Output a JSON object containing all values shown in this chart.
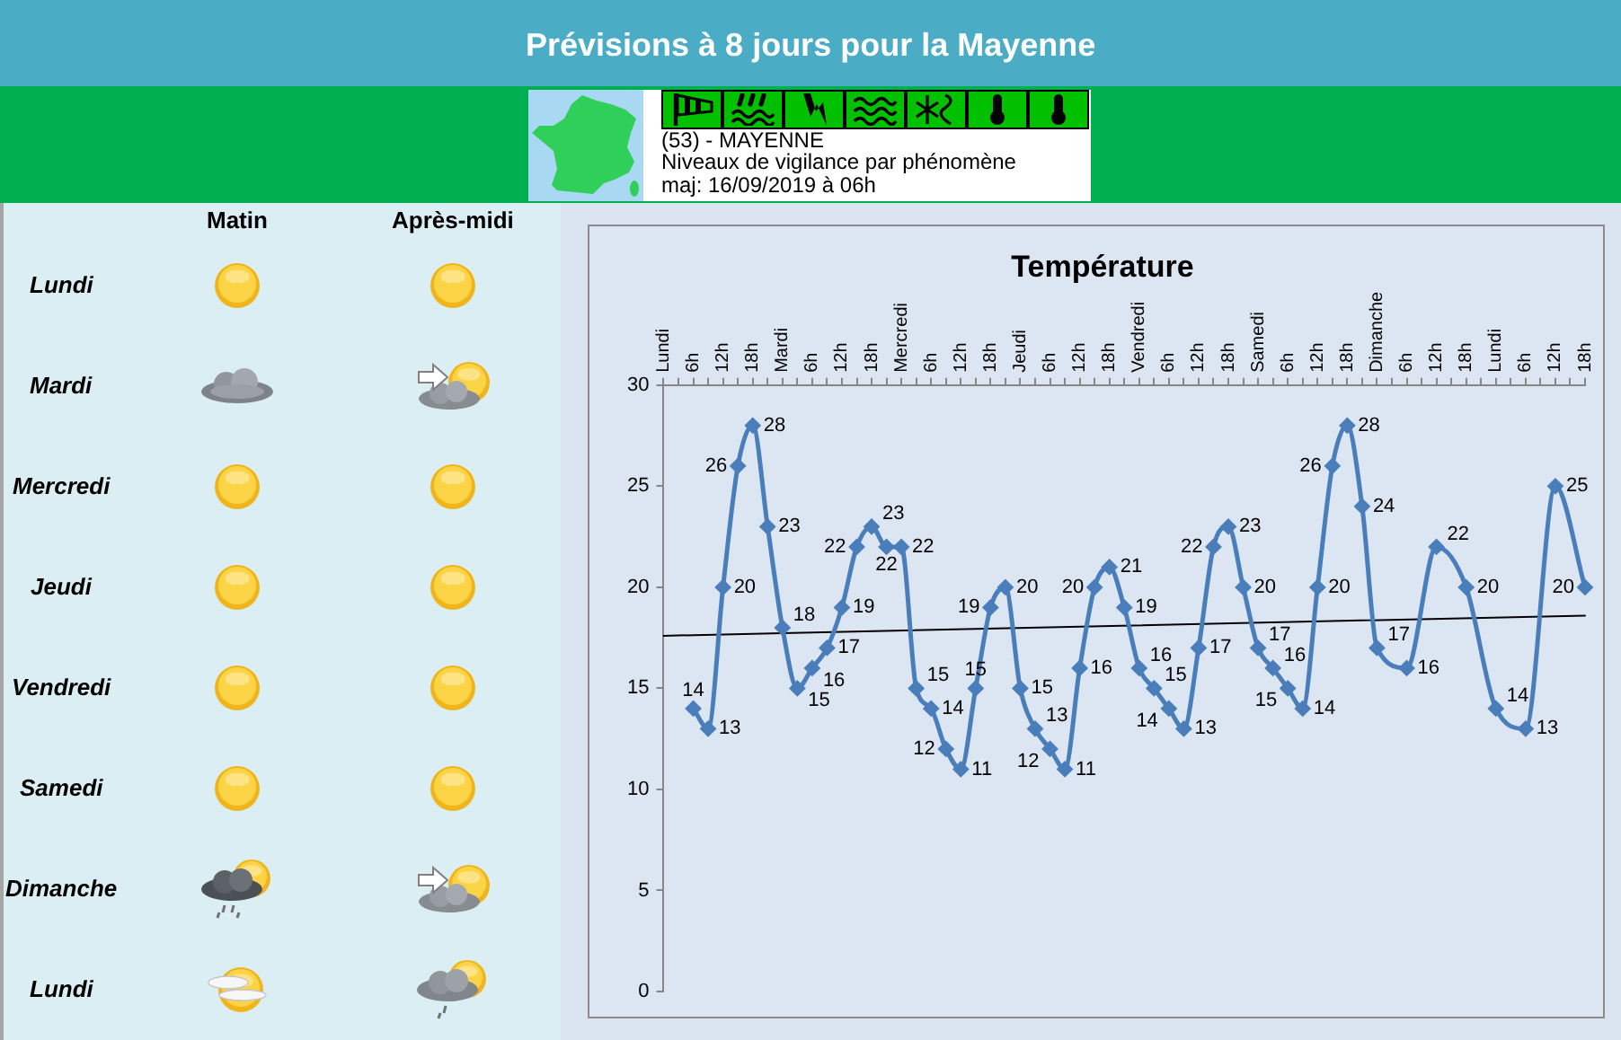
{
  "chart_data": [
    {
      "type": "other",
      "title": "Prévisions à 8 jours pour la Mayenne",
      "annotations": [
        "(53) - MAYENNE",
        "Niveaux de vigilance par phénomène",
        "maj: 16/09/2019 à 06h"
      ]
    },
    {
      "type": "other",
      "categories": [
        "Matin",
        "Après-midi"
      ],
      "y_categories": [
        "Lundi",
        "Mardi",
        "Mercredi",
        "Jeudi",
        "Vendredi",
        "Samedi",
        "Dimanche",
        "Lundi"
      ]
    },
    {
      "type": "line",
      "title": "Température",
      "categories": [
        "Lundi",
        null,
        "6h",
        null,
        "12h",
        null,
        "18h",
        null,
        "Mardi",
        null,
        "6h",
        null,
        "12h",
        null,
        "18h",
        null,
        "Mercredi",
        null,
        "6h",
        null,
        "12h",
        null,
        "18h",
        null,
        "Jeudi",
        null,
        "6h",
        null,
        "12h",
        null,
        "18h",
        null,
        "Vendredi",
        null,
        "6h",
        null,
        "12h",
        null,
        "18h",
        null,
        "Samedi",
        null,
        "6h",
        null,
        "12h",
        null,
        "18h",
        null,
        "Dimanche",
        null,
        "6h",
        null,
        "12h",
        null,
        "18h",
        null,
        "Lundi",
        null,
        "6h",
        null,
        "12h",
        null,
        "18h"
      ],
      "series": [
        {
          "color": "#4a7ebb",
          "marker": "diamond",
          "data_labels": true,
          "values": [
            null,
            null,
            14,
            13,
            20,
            26,
            28,
            23,
            18,
            15,
            16,
            17,
            19,
            22,
            23,
            22,
            22,
            15,
            14,
            12,
            11,
            15,
            19,
            20,
            15,
            13,
            12,
            11,
            16,
            20,
            21,
            19,
            16,
            15,
            14,
            13,
            17,
            22,
            23,
            20,
            17,
            16,
            15,
            14,
            20,
            26,
            28,
            24,
            17,
            null,
            16,
            null,
            22,
            null,
            20,
            null,
            14,
            null,
            13,
            null,
            25,
            null,
            20
          ]
        },
        {
          "type": "line",
          "color": "#000000",
          "marker": "none",
          "values": [
            17.6,
            null,
            null,
            null,
            null,
            null,
            null,
            null,
            null,
            null,
            null,
            null,
            null,
            null,
            null,
            null,
            null,
            null,
            null,
            null,
            null,
            null,
            null,
            null,
            null,
            null,
            null,
            null,
            null,
            null,
            null,
            null,
            null,
            null,
            null,
            null,
            null,
            null,
            null,
            null,
            null,
            null,
            null,
            null,
            null,
            null,
            null,
            null,
            null,
            null,
            null,
            null,
            null,
            null,
            null,
            null,
            null,
            null,
            null,
            null,
            null,
            null,
            18.6
          ]
        }
      ],
      "ylim": [
        0,
        30
      ],
      "yticks": [
        0,
        5,
        10,
        15,
        20,
        25,
        30
      ],
      "line_style": "solid"
    }
  ]
}
